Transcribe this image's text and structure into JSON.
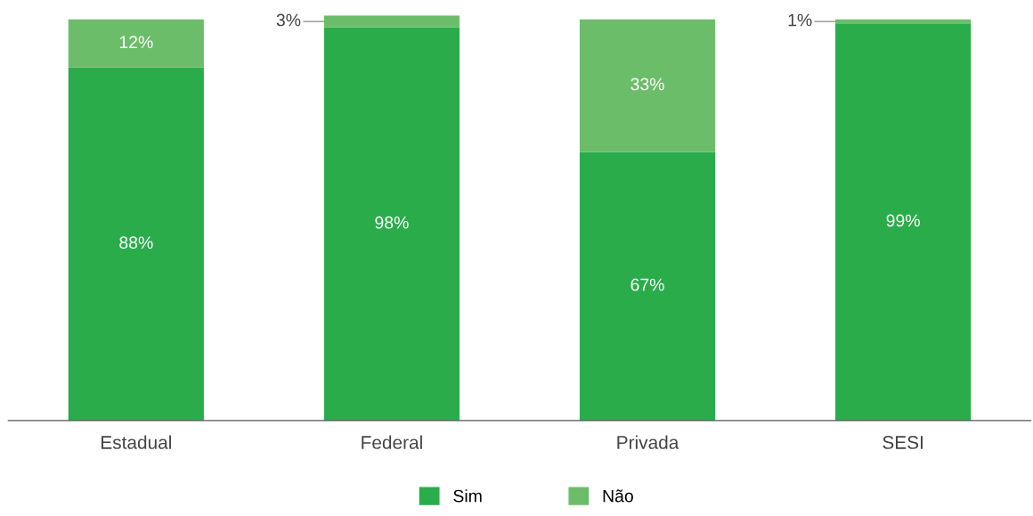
{
  "chart_data": {
    "type": "bar",
    "stacked": true,
    "categories": [
      "Estadual",
      "Federal",
      "Privada",
      "SESI"
    ],
    "series": [
      {
        "name": "Sim",
        "color": "#2aac4b",
        "values": [
          88,
          98,
          67,
          99
        ],
        "value_labels": [
          "88%",
          "98%",
          "67%",
          "99%"
        ]
      },
      {
        "name": "Não",
        "color": "#6cbd6a",
        "values": [
          12,
          3,
          33,
          1
        ],
        "value_labels": [
          "12%",
          "3%",
          "33%",
          "1%"
        ]
      }
    ],
    "tick_labels": "x",
    "grid": false,
    "legend": "bottom"
  }
}
